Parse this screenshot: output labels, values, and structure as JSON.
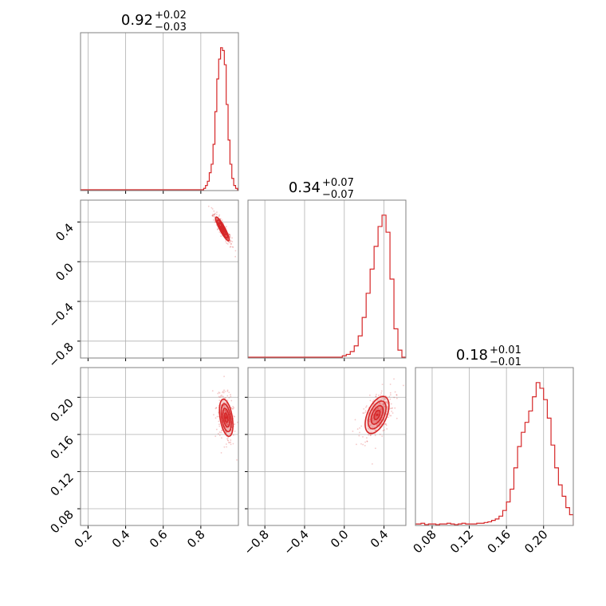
{
  "chart_data": {
    "type": "corner",
    "color": "#d62728",
    "grid": true,
    "parameters": [
      {
        "range": [
          0.16,
          1.0
        ],
        "ticks": [
          "0.2",
          "0.4",
          "0.6",
          "0.8"
        ],
        "tick_values": [
          0.2,
          0.4,
          0.6,
          0.8
        ]
      },
      {
        "range": [
          -0.97,
          0.62
        ],
        "ticks": [
          "−0.8",
          "−0.4",
          "0.0",
          "0.4"
        ],
        "tick_values": [
          -0.8,
          -0.4,
          0.0,
          0.4
        ]
      },
      {
        "range": [
          0.062,
          0.232
        ],
        "ticks": [
          "0.08",
          "0.12",
          "0.16",
          "0.20"
        ],
        "tick_values": [
          0.08,
          0.12,
          0.16,
          0.2
        ]
      }
    ],
    "titles": [
      {
        "value": "0.92",
        "plus": "+0.02",
        "minus": "−0.03"
      },
      {
        "value": "0.34",
        "plus": "+0.07",
        "minus": "−0.07"
      },
      {
        "value": "0.18",
        "plus": "+0.01",
        "minus": "−0.01"
      }
    ],
    "histograms": [
      {
        "bins": [
          0.82,
          0.83,
          0.84,
          0.85,
          0.86,
          0.87,
          0.88,
          0.89,
          0.9,
          0.91,
          0.92,
          0.93,
          0.94,
          0.95,
          0.96,
          0.97,
          0.98,
          0.99
        ],
        "counts": [
          1,
          3,
          6,
          12,
          18,
          32,
          55,
          78,
          92,
          100,
          98,
          88,
          60,
          35,
          18,
          8,
          3,
          1
        ]
      },
      {
        "bins": [
          0.0,
          0.04,
          0.08,
          0.12,
          0.16,
          0.2,
          0.24,
          0.28,
          0.32,
          0.36,
          0.4,
          0.44,
          0.48,
          0.52,
          0.56
        ],
        "counts": [
          1,
          2,
          4,
          8,
          15,
          28,
          45,
          62,
          78,
          92,
          100,
          88,
          55,
          20,
          5
        ]
      },
      {
        "bins": [
          0.062,
          0.066,
          0.07,
          0.074,
          0.078,
          0.082,
          0.086,
          0.09,
          0.094,
          0.098,
          0.102,
          0.106,
          0.11,
          0.114,
          0.118,
          0.122,
          0.126,
          0.13,
          0.134,
          0.138,
          0.142,
          0.146,
          0.15,
          0.154,
          0.158,
          0.162,
          0.166,
          0.17,
          0.174,
          0.178,
          0.182,
          0.186,
          0.19,
          0.194,
          0.198,
          0.202,
          0.206,
          0.21,
          0.214,
          0.218,
          0.222,
          0.226,
          0.23
        ],
        "counts": [
          0.5,
          0.5,
          1,
          0,
          0.5,
          0.5,
          0,
          0.5,
          0.5,
          1,
          0.5,
          0,
          0.5,
          1,
          0.5,
          0.5,
          0.5,
          1,
          1,
          1.5,
          2,
          3,
          4,
          6,
          10,
          16,
          25,
          40,
          55,
          65,
          72,
          80,
          90,
          100,
          96,
          88,
          75,
          56,
          40,
          28,
          20,
          12,
          7
        ]
      }
    ],
    "contours": [
      {
        "x_param": 0,
        "y_param": 1,
        "center": [
          0.915,
          0.33
        ],
        "sigma": [
          0.018,
          0.06
        ],
        "rho": -0.9
      },
      {
        "x_param": 0,
        "y_param": 2,
        "center": [
          0.935,
          0.178
        ],
        "sigma": [
          0.018,
          0.01
        ],
        "rho": -0.4
      },
      {
        "x_param": 1,
        "y_param": 2,
        "center": [
          0.33,
          0.181
        ],
        "sigma": [
          0.06,
          0.01
        ],
        "rho": 0.5
      }
    ],
    "contour_levels": [
      0.5,
      1.0,
      1.5,
      2.0
    ]
  }
}
